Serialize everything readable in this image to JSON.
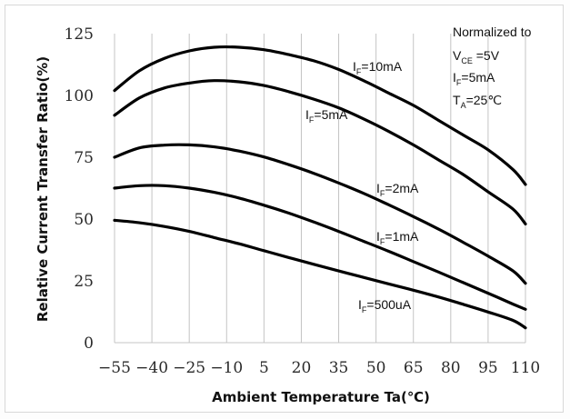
{
  "chart_data": {
    "type": "line",
    "xlabel": "Ambient Temperature Ta(℃)",
    "ylabel": "Relative Current Transfer Ratio(%)",
    "xlim": [
      -55,
      110
    ],
    "ylim": [
      0,
      125
    ],
    "x_ticks": [
      "-55",
      "-40",
      "-25",
      "-10",
      "5",
      "20",
      "35",
      "50",
      "65",
      "80",
      "95",
      "110"
    ],
    "y_ticks": [
      "0",
      "25",
      "50",
      "75",
      "100",
      "125"
    ],
    "grid": "vertical",
    "annotation": {
      "line1": "Normalized to",
      "line2": {
        "main": "V",
        "sub": "CE",
        "rest": " =5V"
      },
      "line3": {
        "main": "I",
        "sub": "F",
        "rest": "=5mA"
      },
      "line4": {
        "main": "T",
        "sub": "A",
        "rest": "=25℃"
      }
    },
    "series": [
      {
        "name": "IF=10mA",
        "label_main": "I",
        "label_sub": "F",
        "label_rest": "=10mA",
        "x": [
          -55,
          -45,
          -35,
          -25,
          -15,
          -5,
          5,
          15,
          25,
          35,
          45,
          55,
          65,
          75,
          85,
          95,
          105,
          110
        ],
        "y": [
          102,
          110,
          115,
          118,
          119.5,
          119.5,
          118.5,
          116.5,
          114,
          110.5,
          106,
          101,
          96,
          90,
          84,
          78,
          70,
          64
        ]
      },
      {
        "name": "IF=5mA",
        "label_main": "I",
        "label_sub": "F",
        "label_rest": "=5mA",
        "x": [
          -55,
          -45,
          -35,
          -25,
          -15,
          -5,
          5,
          15,
          25,
          35,
          45,
          55,
          65,
          75,
          85,
          95,
          105,
          110
        ],
        "y": [
          92,
          99,
          103,
          105,
          106,
          105.5,
          104,
          101.5,
          98.5,
          95,
          90.5,
          85.5,
          80,
          74,
          68,
          61,
          54,
          48
        ]
      },
      {
        "name": "IF=2mA",
        "label_main": "I",
        "label_sub": "F",
        "label_rest": "=2mA",
        "x": [
          -55,
          -45,
          -35,
          -25,
          -15,
          -5,
          5,
          15,
          25,
          35,
          45,
          55,
          65,
          75,
          85,
          95,
          105,
          110
        ],
        "y": [
          75,
          78.8,
          79.9,
          80,
          79.2,
          77.5,
          75.1,
          72,
          68.5,
          64.6,
          60.4,
          55.8,
          51,
          46,
          40.6,
          35,
          29,
          24
        ]
      },
      {
        "name": "IF=1mA",
        "label_main": "I",
        "label_sub": "F",
        "label_rest": "=1mA",
        "x": [
          -55,
          -45,
          -35,
          -25,
          -15,
          -5,
          5,
          15,
          25,
          35,
          45,
          55,
          65,
          75,
          85,
          95,
          105,
          110
        ],
        "y": [
          62.5,
          63.5,
          63.5,
          62.5,
          60.8,
          58.5,
          55.6,
          52.4,
          48.8,
          45,
          41,
          37,
          32.8,
          28.6,
          24.3,
          20,
          15.6,
          13.5
        ]
      },
      {
        "name": "IF=500uA",
        "label_main": "I",
        "label_sub": "F",
        "label_rest": "=500uA",
        "x": [
          -55,
          -45,
          -35,
          -25,
          -15,
          -5,
          5,
          15,
          25,
          35,
          45,
          55,
          65,
          75,
          85,
          95,
          105,
          110
        ],
        "y": [
          49.5,
          48.5,
          47,
          45,
          42.5,
          40,
          37.2,
          34.4,
          31.7,
          29,
          26.4,
          23.8,
          21.2,
          18.5,
          15.5,
          12.4,
          9,
          6
        ]
      }
    ]
  }
}
